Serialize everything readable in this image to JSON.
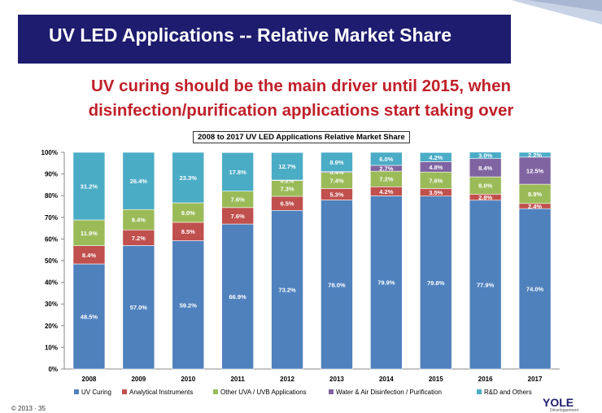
{
  "slide": {
    "title": "UV LED Applications -- Relative Market Share",
    "subtitle_line1": "UV curing should be the main driver until 2015, when",
    "subtitle_line2": "disinfection/purification applications start taking over",
    "copyright": "© 2013 · 35",
    "logo_text": "YOLE",
    "logo_sub": "Développement"
  },
  "colors": {
    "title_bar": "#1d1c6e",
    "subtitle": "#c0202a",
    "uv_curing": "#4f81bd",
    "analytical": "#c0504d",
    "other_uva": "#9bbb59",
    "water_air": "#8064a2",
    "rd_others": "#4bacc6"
  },
  "chart_data": {
    "type": "bar",
    "stacked": true,
    "title": "2008 to 2017 UV LED Applications Relative Market Share",
    "categories": [
      "2008",
      "2009",
      "2010",
      "2011",
      "2012",
      "2013",
      "2014",
      "2015",
      "2016",
      "2017"
    ],
    "ylim": [
      0,
      100
    ],
    "yticks": [
      "0%",
      "10%",
      "20%",
      "30%",
      "40%",
      "50%",
      "60%",
      "70%",
      "80%",
      "90%",
      "100%"
    ],
    "series": [
      {
        "name": "UV Curing",
        "color": "#4f81bd",
        "values": [
          48.5,
          57.0,
          59.2,
          66.9,
          73.2,
          78.0,
          79.9,
          79.8,
          77.9,
          74.0
        ],
        "labels": [
          "48.5%",
          "57.0%",
          "59.2%",
          "66.9%",
          "73.2%",
          "78.0%",
          "79.9%",
          "79.8%",
          "77.9%",
          "74.0%"
        ]
      },
      {
        "name": "Analytical Instruments",
        "color": "#c0504d",
        "values": [
          8.4,
          7.2,
          8.5,
          7.6,
          6.5,
          5.3,
          4.2,
          3.5,
          2.8,
          2.4
        ],
        "labels": [
          "8.4%",
          "7.2%",
          "8.5%",
          "7.6%",
          "6.5%",
          "5.3%",
          "4.2%",
          "3.5%",
          "2.8%",
          "2.4%"
        ]
      },
      {
        "name": "Other UVA / UVB Applications",
        "color": "#9bbb59",
        "values": [
          11.9,
          9.4,
          9.0,
          7.6,
          7.3,
          7.4,
          7.2,
          7.6,
          8.0,
          8.9
        ],
        "labels": [
          "11.9%",
          "9.4%",
          "9.0%",
          "7.6%",
          "7.3%",
          "7.4%",
          "7.2%",
          "7.6%",
          "8.0%",
          "8.9%"
        ]
      },
      {
        "name": "Water & Air Disinfection / Purification",
        "color": "#8064a2",
        "values": [
          0,
          0,
          0,
          0,
          0.2,
          0.4,
          2.7,
          4.8,
          8.4,
          12.5
        ],
        "labels": [
          "",
          "",
          "",
          "",
          "0.2%",
          "0.4%",
          "2.7%",
          "4.8%",
          "8.4%",
          "12.5%"
        ]
      },
      {
        "name": "R&D and Others",
        "color": "#4bacc6",
        "values": [
          31.2,
          26.4,
          23.3,
          17.8,
          12.7,
          8.9,
          6.0,
          4.2,
          3.0,
          2.2
        ],
        "labels": [
          "31.2%",
          "26.4%",
          "23.3%",
          "17.8%",
          "12.7%",
          "8.9%",
          "6.0%",
          "4.2%",
          "3.0%",
          "2.2%"
        ]
      }
    ],
    "legend_position": "bottom"
  }
}
